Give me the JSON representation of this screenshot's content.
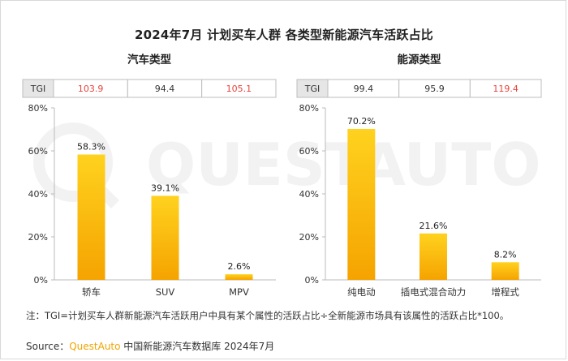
{
  "title": "2024年7月 计划买车人群 各类型新能源汽车活跃占比",
  "watermark": "QUESTAUTO",
  "chart_data": [
    {
      "type": "bar",
      "title": "汽车类型",
      "categories": [
        "轿车",
        "SUV",
        "MPV"
      ],
      "values": [
        58.3,
        39.1,
        2.6
      ],
      "value_labels": [
        "58.3%",
        "39.1%",
        "2.6%"
      ],
      "tgi_label": "TGI",
      "tgi": [
        "103.9",
        "94.4",
        "105.1"
      ],
      "tgi_colors": [
        "#e8423d",
        "#333333",
        "#e8423d"
      ],
      "ylim": [
        0,
        80
      ],
      "yticks": [
        "0%",
        "20%",
        "40%",
        "60%",
        "80%"
      ],
      "ytick_values": [
        0,
        20,
        40,
        60,
        80
      ],
      "grid": false
    },
    {
      "type": "bar",
      "title": "能源类型",
      "categories": [
        "纯电动",
        "插电式混合动力",
        "增程式"
      ],
      "values": [
        70.2,
        21.6,
        8.2
      ],
      "value_labels": [
        "70.2%",
        "21.6%",
        "8.2%"
      ],
      "tgi_label": "TGI",
      "tgi": [
        "99.4",
        "95.9",
        "119.4"
      ],
      "tgi_colors": [
        "#333333",
        "#333333",
        "#e8423d"
      ],
      "ylim": [
        0,
        80
      ],
      "yticks": [
        "0%",
        "20%",
        "40%",
        "60%",
        "80%"
      ],
      "ytick_values": [
        0,
        20,
        40,
        60,
        80
      ],
      "grid": false
    }
  ],
  "note": "注：TGI=计划买车人群新能源汽车活跃用户中具有某个属性的活跃占比÷全新能源市场具有该属性的活跃占比*100。",
  "source": {
    "prefix": "Source：",
    "brand": "QuestAuto",
    "rest": " 中国新能源汽车数据库 2024年7月"
  },
  "colors": {
    "bar_top": "#ffd21f",
    "bar_bottom": "#f5a300",
    "tgi_header_bg": "#e6e6e6",
    "highlight": "#e8423d"
  }
}
